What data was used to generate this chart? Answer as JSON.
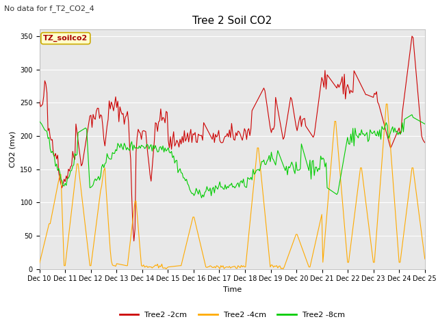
{
  "title": "Tree 2 Soil CO2",
  "subtitle": "No data for f_T2_CO2_4",
  "ylabel": "CO2 (mv)",
  "xlabel": "Time",
  "ylim": [
    0,
    360
  ],
  "yticks": [
    0,
    50,
    100,
    150,
    200,
    250,
    300,
    350
  ],
  "xtick_labels": [
    "Dec 10",
    "Dec 11",
    "Dec 12",
    "Dec 13",
    "Dec 14",
    "Dec 15",
    "Dec 16",
    "Dec 17",
    "Dec 18",
    "Dec 19",
    "Dec 20",
    "Dec 21",
    "Dec 22",
    "Dec 23",
    "Dec 24",
    "Dec 25"
  ],
  "legend_labels": [
    "Tree2 -2cm",
    "Tree2 -4cm",
    "Tree2 -8cm"
  ],
  "legend_colors": [
    "#cc0000",
    "#ffaa00",
    "#00cc00"
  ],
  "plot_bg": "#e8e8e8",
  "box_label": "TZ_soilco2",
  "box_bg": "#ffffcc",
  "box_border": "#ccaa00",
  "line_colors": {
    "red": "#cc0000",
    "orange": "#ffaa00",
    "green": "#00cc00"
  },
  "title_fontsize": 11,
  "subtitle_fontsize": 8,
  "tick_fontsize": 7,
  "label_fontsize": 8,
  "legend_fontsize": 8
}
